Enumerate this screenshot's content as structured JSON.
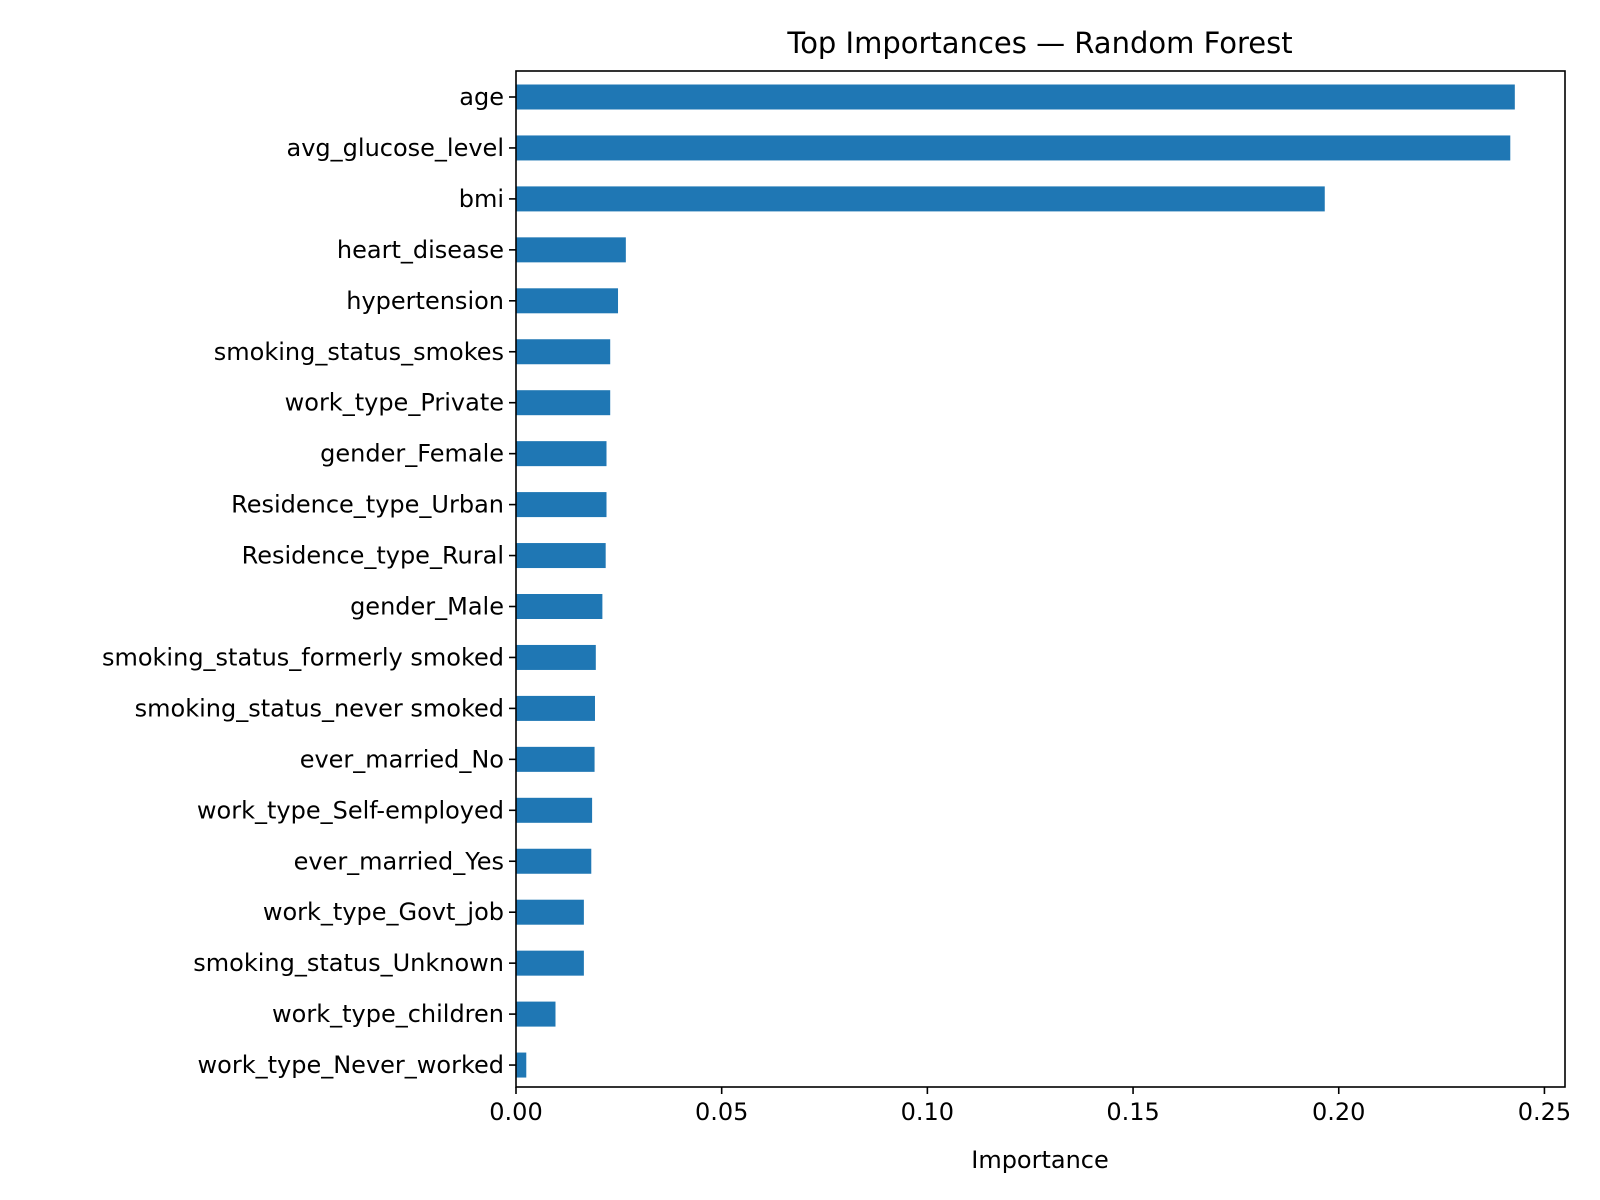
{
  "chart_data": {
    "type": "bar",
    "orientation": "horizontal",
    "title": "Top Importances — Random Forest",
    "xlabel": "Importance",
    "ylabel": "",
    "xlim": [
      0,
      0.255
    ],
    "xticks": [
      "0.00",
      "0.05",
      "0.10",
      "0.15",
      "0.20",
      "0.25"
    ],
    "xtick_values": [
      0,
      0.05,
      0.1,
      0.15,
      0.2,
      0.25
    ],
    "grid": false,
    "bar_color": "#1f77b4",
    "categories": [
      "age",
      "avg_glucose_level",
      "bmi",
      "heart_disease",
      "hypertension",
      "smoking_status_smokes",
      "work_type_Private",
      "gender_Female",
      "Residence_type_Urban",
      "Residence_type_Rural",
      "gender_Male",
      "smoking_status_formerly smoked",
      "smoking_status_never smoked",
      "ever_married_No",
      "work_type_Self-employed",
      "ever_married_Yes",
      "work_type_Govt_job",
      "smoking_status_Unknown",
      "work_type_children",
      "work_type_Never_worked"
    ],
    "values": [
      0.2428,
      0.2417,
      0.1966,
      0.0267,
      0.0248,
      0.0229,
      0.0229,
      0.022,
      0.022,
      0.0218,
      0.021,
      0.0194,
      0.0192,
      0.0191,
      0.0185,
      0.0183,
      0.0165,
      0.0165,
      0.0096,
      0.0025
    ]
  }
}
